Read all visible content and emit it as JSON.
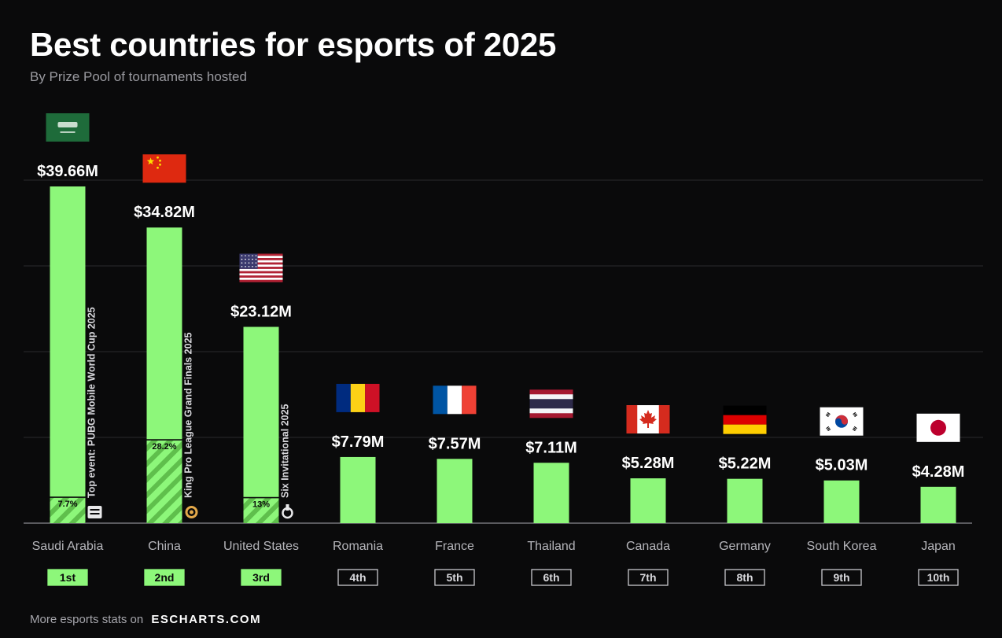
{
  "header": {
    "title": "Best countries for esports of 2025",
    "subtitle": "By Prize Pool of tournaments hosted"
  },
  "footer": {
    "text": "More esports stats on",
    "brand": "ESCHARTS.COM"
  },
  "colors": {
    "bar": "#8df77a",
    "bar_hatch": "#5fbf4c",
    "background": "#0a0a0b",
    "grid": "#2a2a2e",
    "rank_top": "#8df77a"
  },
  "chart_data": {
    "type": "bar",
    "title": "Best countries for esports of 2025",
    "subtitle": "By Prize Pool of tournaments hosted",
    "ylim": [
      0,
      40
    ],
    "unit": "M USD",
    "grid": true,
    "categories": [
      "Saudi Arabia",
      "China",
      "United States",
      "Romania",
      "France",
      "Thailand",
      "Canada",
      "Germany",
      "South Korea",
      "Japan"
    ],
    "values": [
      39.66,
      34.82,
      23.12,
      7.79,
      7.57,
      7.11,
      5.28,
      5.22,
      5.03,
      4.28
    ],
    "value_labels": [
      "$39.66M",
      "$34.82M",
      "$23.12M",
      "$7.79M",
      "$7.57M",
      "$7.11M",
      "$5.28M",
      "$5.22M",
      "$5.03M",
      "$4.28M"
    ],
    "ranks": [
      "1st",
      "2nd",
      "3rd",
      "4th",
      "5th",
      "6th",
      "7th",
      "8th",
      "9th",
      "10th"
    ],
    "flags": [
      "saudi-arabia-flag",
      "china-flag",
      "united-states-flag",
      "romania-flag",
      "france-flag",
      "thailand-flag",
      "canada-flag",
      "germany-flag",
      "south-korea-flag",
      "japan-flag"
    ],
    "top_events": [
      {
        "index": 0,
        "label": "Top event: PUBG Mobile World Cup 2025",
        "share": 7.7,
        "share_label": "7.7%",
        "icon": "pubg-logo-icon"
      },
      {
        "index": 1,
        "label": "King Pro League Grand Finals 2025",
        "share": 28.2,
        "share_label": "28.2%",
        "icon": "kpl-logo-icon"
      },
      {
        "index": 2,
        "label": "Six Invitational 2025",
        "share": 13,
        "share_label": "13%",
        "icon": "rainbow-six-logo-icon"
      }
    ]
  }
}
